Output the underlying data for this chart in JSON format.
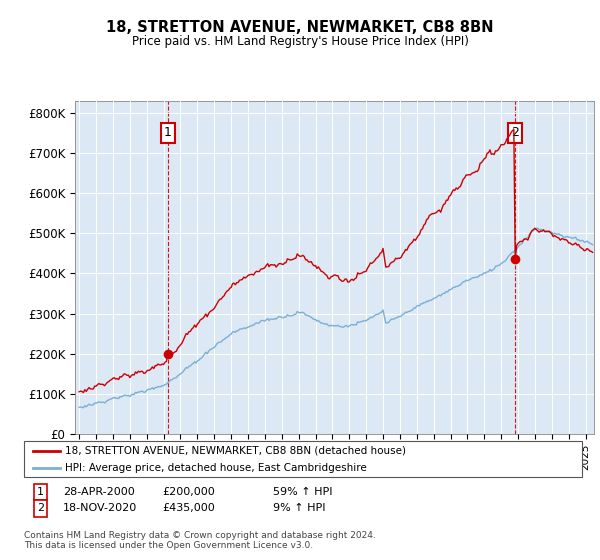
{
  "title": "18, STRETTON AVENUE, NEWMARKET, CB8 8BN",
  "subtitle": "Price paid vs. HM Land Registry's House Price Index (HPI)",
  "sale1_price": 200000,
  "sale1_label": "1",
  "sale1_hpi_pct": "59% ↑ HPI",
  "sale1_date_str": "28-APR-2000",
  "sale2_price": 435000,
  "sale2_label": "2",
  "sale2_hpi_pct": "9% ↑ HPI",
  "sale2_date_str": "18-NOV-2020",
  "legend_line1": "18, STRETTON AVENUE, NEWMARKET, CB8 8BN (detached house)",
  "legend_line2": "HPI: Average price, detached house, East Cambridgeshire",
  "footnote": "Contains HM Land Registry data © Crown copyright and database right 2024.\nThis data is licensed under the Open Government Licence v3.0.",
  "price_line_color": "#cc0000",
  "hpi_line_color": "#7bafd4",
  "bg_color": "#dce9f5",
  "ylim": [
    0,
    830000
  ],
  "yticks": [
    0,
    100000,
    200000,
    300000,
    400000,
    500000,
    600000,
    700000,
    800000
  ],
  "ytick_labels": [
    "£0",
    "£100K",
    "£200K",
    "£300K",
    "£400K",
    "£500K",
    "£600K",
    "£700K",
    "£800K"
  ],
  "xstart": 1994.75,
  "xend": 2025.5,
  "sale1_time": 2000.25,
  "sale2_time": 2020.83
}
